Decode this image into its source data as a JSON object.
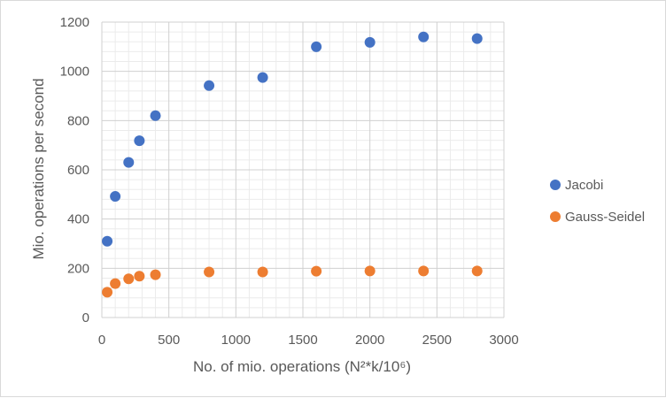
{
  "chart_data": {
    "type": "scatter",
    "title": "",
    "xlabel": "No. of mio. operations (N²*k/10⁶)",
    "ylabel": "Mio. operations per second",
    "xlim": [
      0,
      3000
    ],
    "ylim": [
      0,
      1200
    ],
    "x_ticks": [
      "0",
      "500",
      "1000",
      "1500",
      "2000",
      "2500",
      "3000"
    ],
    "y_ticks": [
      "0",
      "200",
      "400",
      "600",
      "800",
      "1000",
      "1200"
    ],
    "grid": true,
    "legend_position": "right",
    "series": [
      {
        "name": "Jacobi",
        "color": "#4472c4",
        "points": [
          [
            40,
            310
          ],
          [
            100,
            492
          ],
          [
            200,
            630
          ],
          [
            280,
            718
          ],
          [
            400,
            820
          ],
          [
            800,
            942
          ],
          [
            1200,
            975
          ],
          [
            1600,
            1100
          ],
          [
            2000,
            1118
          ],
          [
            2400,
            1140
          ],
          [
            2800,
            1133
          ]
        ]
      },
      {
        "name": "Gauss-Seidel",
        "color": "#ed7d31",
        "points": [
          [
            40,
            103
          ],
          [
            100,
            138
          ],
          [
            200,
            157
          ],
          [
            280,
            168
          ],
          [
            400,
            174
          ],
          [
            800,
            185
          ],
          [
            1200,
            185
          ],
          [
            1600,
            188
          ],
          [
            2000,
            189
          ],
          [
            2400,
            189
          ],
          [
            2800,
            189
          ]
        ]
      }
    ]
  }
}
